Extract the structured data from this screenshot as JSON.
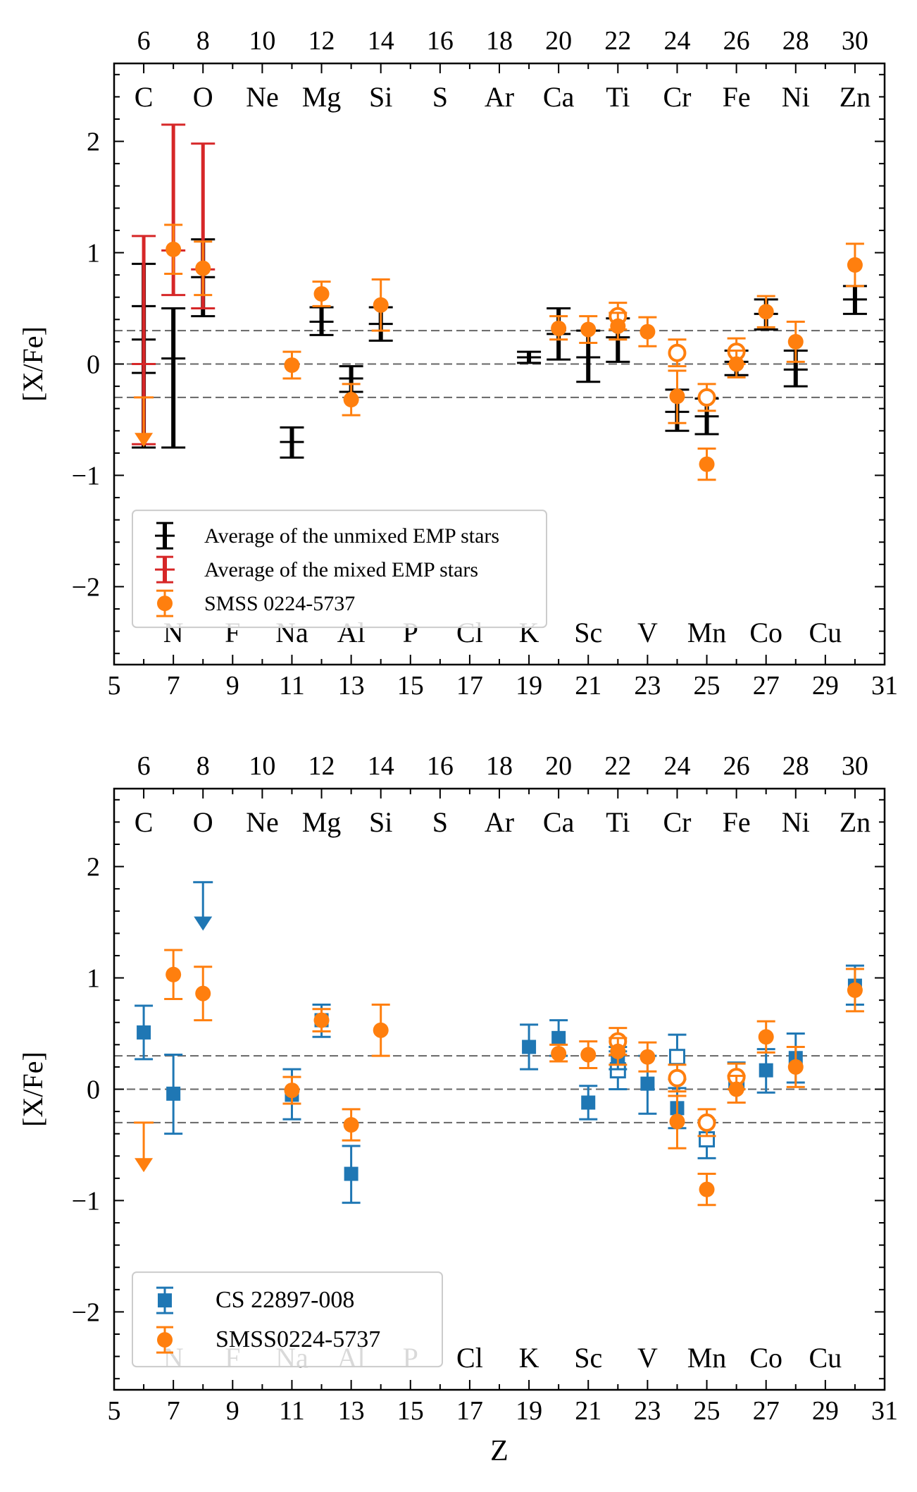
{
  "chart_data": [
    {
      "type": "scatter",
      "panel": "top",
      "ylabel": "[X/Fe]",
      "xlabel": "",
      "xlim": [
        5,
        31
      ],
      "ylim": [
        -2.7,
        2.7
      ],
      "xticks": [
        5,
        7,
        9,
        11,
        13,
        15,
        17,
        19,
        21,
        23,
        25,
        27,
        29,
        31
      ],
      "xticks_top": [
        6,
        8,
        10,
        12,
        14,
        16,
        18,
        20,
        22,
        24,
        26,
        28,
        30
      ],
      "yticks": [
        -2,
        -1,
        0,
        1,
        2
      ],
      "yticklabels": [
        "−2",
        "−1",
        "0",
        "1",
        "2"
      ],
      "element_labels_top": [
        {
          "z": 6,
          "label": "C"
        },
        {
          "z": 8,
          "label": "O"
        },
        {
          "z": 10,
          "label": "Ne"
        },
        {
          "z": 12,
          "label": "Mg"
        },
        {
          "z": 14,
          "label": "Si"
        },
        {
          "z": 16,
          "label": "S"
        },
        {
          "z": 18,
          "label": "Ar"
        },
        {
          "z": 20,
          "label": "Ca"
        },
        {
          "z": 22,
          "label": "Ti"
        },
        {
          "z": 24,
          "label": "Cr"
        },
        {
          "z": 26,
          "label": "Fe"
        },
        {
          "z": 28,
          "label": "Ni"
        },
        {
          "z": 30,
          "label": "Zn"
        }
      ],
      "element_labels_bottom": [
        {
          "z": 7,
          "label": "N"
        },
        {
          "z": 9,
          "label": "F"
        },
        {
          "z": 11,
          "label": "Na"
        },
        {
          "z": 13,
          "label": "Al"
        },
        {
          "z": 15,
          "label": "P"
        },
        {
          "z": 17,
          "label": "Cl"
        },
        {
          "z": 19,
          "label": "K"
        },
        {
          "z": 21,
          "label": "Sc"
        },
        {
          "z": 23,
          "label": "V"
        },
        {
          "z": 25,
          "label": "Mn"
        },
        {
          "z": 27,
          "label": "Co"
        },
        {
          "z": 29,
          "label": "Cu"
        }
      ],
      "reference_lines": [
        0.3,
        0.0,
        -0.3
      ],
      "legend": {
        "position": "lower-left",
        "entries": [
          {
            "name": "Average of the unmixed EMP stars",
            "color": "#000000",
            "marker": "errorbar"
          },
          {
            "name": "Average of the mixed EMP stars",
            "color": "#d62728",
            "marker": "errorbar"
          },
          {
            "name": "SMSS 0224-5737",
            "color": "#ff7f0e",
            "marker": "circle"
          }
        ]
      },
      "series": [
        {
          "name": "Average of the unmixed EMP stars",
          "color": "#000000",
          "marker": "none",
          "points": [
            {
              "z": 6,
              "y": 0.22,
              "lo": -0.08,
              "hi": 0.52,
              "lo2": -0.75,
              "hi2": 0.9
            },
            {
              "z": 7,
              "y": 0.05,
              "lo": -0.75,
              "hi": 0.5
            },
            {
              "z": 8,
              "y": 0.78,
              "lo": 0.43,
              "hi": 1.12
            },
            {
              "z": 11,
              "y": -0.7,
              "lo": -0.84,
              "hi": -0.57
            },
            {
              "z": 12,
              "y": 0.38,
              "lo": 0.26,
              "hi": 0.51
            },
            {
              "z": 13,
              "y": -0.13,
              "lo": -0.25,
              "hi": -0.02
            },
            {
              "z": 14,
              "y": 0.36,
              "lo": 0.21,
              "hi": 0.51
            },
            {
              "z": 19,
              "y": 0.06,
              "lo": 0.01,
              "hi": 0.11
            },
            {
              "z": 20,
              "y": 0.27,
              "lo": 0.04,
              "hi": 0.5
            },
            {
              "z": 21,
              "y": 0.06,
              "lo": -0.16,
              "hi": 0.3
            },
            {
              "z": 22,
              "y": 0.24,
              "lo": 0.02,
              "hi": 0.41
            },
            {
              "z": 24,
              "y": -0.43,
              "lo": -0.6,
              "hi": -0.23
            },
            {
              "z": 25,
              "y": -0.47,
              "lo": -0.63,
              "hi": -0.31
            },
            {
              "z": 26,
              "y": 0.02,
              "lo": -0.1,
              "hi": 0.12
            },
            {
              "z": 27,
              "y": 0.45,
              "lo": 0.31,
              "hi": 0.58
            },
            {
              "z": 28,
              "y": -0.05,
              "lo": -0.2,
              "hi": 0.12
            },
            {
              "z": 30,
              "y": 0.58,
              "lo": 0.45,
              "hi": 0.7
            }
          ]
        },
        {
          "name": "Average of the mixed EMP stars",
          "color": "#d62728",
          "marker": "none",
          "points": [
            {
              "z": 6,
              "y": 0.0,
              "lo": -0.72,
              "hi": 1.15
            },
            {
              "z": 7,
              "y": 1.02,
              "lo": 0.62,
              "hi": 2.15
            },
            {
              "z": 8,
              "y": 0.85,
              "lo": 0.5,
              "hi": 1.98
            }
          ]
        },
        {
          "name": "SMSS 0224-5737",
          "color": "#ff7f0e",
          "marker": "circle",
          "points": [
            {
              "z": 6,
              "y": -0.3,
              "upper_limit": true,
              "arrow_to": -0.72
            },
            {
              "z": 7,
              "y": 1.03,
              "lo": 0.81,
              "hi": 1.25
            },
            {
              "z": 8,
              "y": 0.86,
              "lo": 0.62,
              "hi": 1.1
            },
            {
              "z": 11,
              "y": -0.01,
              "lo": -0.13,
              "hi": 0.11
            },
            {
              "z": 12,
              "y": 0.63,
              "lo": 0.52,
              "hi": 0.74
            },
            {
              "z": 13,
              "y": -0.32,
              "lo": -0.46,
              "hi": -0.18
            },
            {
              "z": 14,
              "y": 0.53,
              "lo": 0.3,
              "hi": 0.76
            },
            {
              "z": 20,
              "y": 0.32,
              "lo": 0.22,
              "hi": 0.43
            },
            {
              "z": 21,
              "y": 0.31,
              "lo": 0.19,
              "hi": 0.43
            },
            {
              "z": 22,
              "y": 0.43,
              "lo": 0.31,
              "hi": 0.55,
              "open": true
            },
            {
              "z": 22,
              "y": 0.34,
              "lo": 0.22,
              "hi": 0.46
            },
            {
              "z": 23,
              "y": 0.29,
              "lo": 0.16,
              "hi": 0.42
            },
            {
              "z": 24,
              "y": 0.1,
              "lo": -0.02,
              "hi": 0.22,
              "open": true
            },
            {
              "z": 24,
              "y": -0.29,
              "lo": -0.53,
              "hi": -0.06
            },
            {
              "z": 25,
              "y": -0.3,
              "lo": -0.42,
              "hi": -0.18,
              "open": true
            },
            {
              "z": 25,
              "y": -0.9,
              "lo": -1.04,
              "hi": -0.76
            },
            {
              "z": 26,
              "y": 0.11,
              "lo": 0.0,
              "hi": 0.23,
              "open": true
            },
            {
              "z": 26,
              "y": 0.0,
              "lo": -0.12,
              "hi": 0.12
            },
            {
              "z": 27,
              "y": 0.47,
              "lo": 0.33,
              "hi": 0.61
            },
            {
              "z": 28,
              "y": 0.2,
              "lo": 0.02,
              "hi": 0.38
            },
            {
              "z": 30,
              "y": 0.89,
              "lo": 0.7,
              "hi": 1.08
            }
          ]
        }
      ]
    },
    {
      "type": "scatter",
      "panel": "bottom",
      "ylabel": "[X/Fe]",
      "xlabel": "Z",
      "xlim": [
        5,
        31
      ],
      "ylim": [
        -2.7,
        2.7
      ],
      "xticks": [
        5,
        7,
        9,
        11,
        13,
        15,
        17,
        19,
        21,
        23,
        25,
        27,
        29,
        31
      ],
      "xticks_top": [
        6,
        8,
        10,
        12,
        14,
        16,
        18,
        20,
        22,
        24,
        26,
        28,
        30
      ],
      "yticks": [
        -2,
        -1,
        0,
        1,
        2
      ],
      "yticklabels": [
        "−2",
        "−1",
        "0",
        "1",
        "2"
      ],
      "element_labels_top": [
        {
          "z": 6,
          "label": "C"
        },
        {
          "z": 8,
          "label": "O"
        },
        {
          "z": 10,
          "label": "Ne"
        },
        {
          "z": 12,
          "label": "Mg"
        },
        {
          "z": 14,
          "label": "Si"
        },
        {
          "z": 16,
          "label": "S"
        },
        {
          "z": 18,
          "label": "Ar"
        },
        {
          "z": 20,
          "label": "Ca"
        },
        {
          "z": 22,
          "label": "Ti"
        },
        {
          "z": 24,
          "label": "Cr"
        },
        {
          "z": 26,
          "label": "Fe"
        },
        {
          "z": 28,
          "label": "Ni"
        },
        {
          "z": 30,
          "label": "Zn"
        }
      ],
      "element_labels_bottom": [
        {
          "z": 7,
          "label": "N"
        },
        {
          "z": 9,
          "label": "F"
        },
        {
          "z": 11,
          "label": "Na"
        },
        {
          "z": 13,
          "label": "Al"
        },
        {
          "z": 15,
          "label": "P"
        },
        {
          "z": 17,
          "label": "Cl"
        },
        {
          "z": 19,
          "label": "K"
        },
        {
          "z": 21,
          "label": "Sc"
        },
        {
          "z": 23,
          "label": "V"
        },
        {
          "z": 25,
          "label": "Mn"
        },
        {
          "z": 27,
          "label": "Co"
        },
        {
          "z": 29,
          "label": "Cu"
        }
      ],
      "reference_lines": [
        0.3,
        0.0,
        -0.3
      ],
      "legend": {
        "position": "lower-left",
        "entries": [
          {
            "name": "CS 22897-008",
            "color": "#1f77b4",
            "marker": "square"
          },
          {
            "name": "SMSS0224-5737",
            "color": "#ff7f0e",
            "marker": "circle"
          }
        ]
      },
      "series": [
        {
          "name": "CS 22897-008",
          "color": "#1f77b4",
          "marker": "square",
          "points": [
            {
              "z": 6,
              "y": 0.51,
              "lo": 0.27,
              "hi": 0.75
            },
            {
              "z": 7,
              "y": -0.04,
              "lo": -0.4,
              "hi": 0.31
            },
            {
              "z": 8,
              "y": 1.86,
              "upper_limit": true,
              "arrow_to": 1.45
            },
            {
              "z": 11,
              "y": -0.05,
              "lo": -0.27,
              "hi": 0.18
            },
            {
              "z": 12,
              "y": 0.62,
              "lo": 0.47,
              "hi": 0.76
            },
            {
              "z": 13,
              "y": -0.76,
              "lo": -1.02,
              "hi": -0.51
            },
            {
              "z": 19,
              "y": 0.38,
              "lo": 0.18,
              "hi": 0.58
            },
            {
              "z": 20,
              "y": 0.46,
              "lo": 0.3,
              "hi": 0.62
            },
            {
              "z": 21,
              "y": -0.12,
              "lo": -0.27,
              "hi": 0.03
            },
            {
              "z": 22,
              "y": 0.17,
              "lo": 0.0,
              "hi": 0.34,
              "open": true
            },
            {
              "z": 22,
              "y": 0.28,
              "lo": 0.18,
              "hi": 0.38
            },
            {
              "z": 23,
              "y": 0.05,
              "lo": -0.22,
              "hi": 0.3
            },
            {
              "z": 24,
              "y": 0.29,
              "lo": 0.09,
              "hi": 0.49,
              "open": true
            },
            {
              "z": 24,
              "y": -0.17,
              "lo": -0.35,
              "hi": 0.01
            },
            {
              "z": 25,
              "y": -0.45,
              "lo": -0.62,
              "hi": -0.28,
              "open": true
            },
            {
              "z": 26,
              "y": 0.06,
              "lo": -0.12,
              "hi": 0.24,
              "open": true
            },
            {
              "z": 27,
              "y": 0.17,
              "lo": -0.03,
              "hi": 0.36
            },
            {
              "z": 28,
              "y": 0.28,
              "lo": 0.06,
              "hi": 0.5
            },
            {
              "z": 30,
              "y": 0.93,
              "lo": 0.76,
              "hi": 1.11
            }
          ]
        },
        {
          "name": "SMSS0224-5737",
          "color": "#ff7f0e",
          "marker": "circle",
          "points": [
            {
              "z": 6,
              "y": -0.3,
              "upper_limit": true,
              "arrow_to": -0.72
            },
            {
              "z": 7,
              "y": 1.03,
              "lo": 0.81,
              "hi": 1.25
            },
            {
              "z": 8,
              "y": 0.86,
              "lo": 0.62,
              "hi": 1.1
            },
            {
              "z": 11,
              "y": -0.01,
              "lo": -0.13,
              "hi": 0.11
            },
            {
              "z": 12,
              "y": 0.62,
              "lo": 0.52,
              "hi": 0.72
            },
            {
              "z": 13,
              "y": -0.32,
              "lo": -0.46,
              "hi": -0.18
            },
            {
              "z": 14,
              "y": 0.53,
              "lo": 0.3,
              "hi": 0.76
            },
            {
              "z": 20,
              "y": 0.32,
              "lo": 0.25,
              "hi": 0.4
            },
            {
              "z": 21,
              "y": 0.31,
              "lo": 0.19,
              "hi": 0.43
            },
            {
              "z": 22,
              "y": 0.43,
              "lo": 0.31,
              "hi": 0.55,
              "open": true
            },
            {
              "z": 22,
              "y": 0.34,
              "lo": 0.22,
              "hi": 0.46
            },
            {
              "z": 23,
              "y": 0.29,
              "lo": 0.16,
              "hi": 0.42
            },
            {
              "z": 24,
              "y": 0.1,
              "lo": -0.02,
              "hi": 0.22,
              "open": true
            },
            {
              "z": 24,
              "y": -0.29,
              "lo": -0.53,
              "hi": -0.06
            },
            {
              "z": 25,
              "y": -0.3,
              "lo": -0.42,
              "hi": -0.18,
              "open": true
            },
            {
              "z": 25,
              "y": -0.9,
              "lo": -1.04,
              "hi": -0.76
            },
            {
              "z": 26,
              "y": 0.11,
              "lo": 0.0,
              "hi": 0.23,
              "open": true
            },
            {
              "z": 26,
              "y": 0.0,
              "lo": -0.12,
              "hi": 0.12
            },
            {
              "z": 27,
              "y": 0.47,
              "lo": 0.33,
              "hi": 0.61
            },
            {
              "z": 28,
              "y": 0.2,
              "lo": 0.02,
              "hi": 0.38
            },
            {
              "z": 30,
              "y": 0.89,
              "lo": 0.7,
              "hi": 1.08
            }
          ]
        }
      ]
    }
  ]
}
